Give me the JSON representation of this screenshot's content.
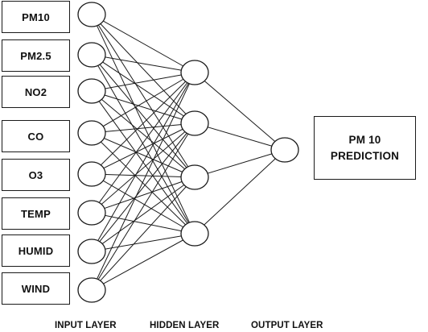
{
  "inputs": [
    {
      "label": "PM10"
    },
    {
      "label": "PM2.5"
    },
    {
      "label": "NO2"
    },
    {
      "label": "CO"
    },
    {
      "label": "O3"
    },
    {
      "label": "TEMP"
    },
    {
      "label": "HUMID"
    },
    {
      "label": "WIND"
    }
  ],
  "hidden_count": 4,
  "output": {
    "line1": "PM 10",
    "line2": "PREDICTION"
  },
  "layer_labels": {
    "input": "INPUT LAYER",
    "hidden": "HIDDEN LAYER",
    "output": "OUTPUT LAYER"
  }
}
